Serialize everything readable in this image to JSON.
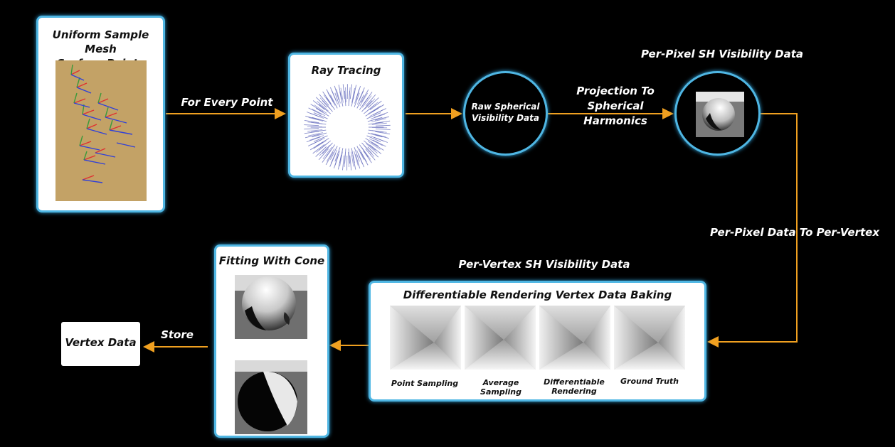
{
  "nodes": {
    "uniform_sample": {
      "title_line1": "Uniform Sample Mesh",
      "title_line2": "Surface Points"
    },
    "ray_tracing": {
      "title": "Ray Tracing"
    },
    "raw_spherical": {
      "line1": "Raw Spherical",
      "line2": "Visibility Data"
    },
    "per_pixel": {
      "title": "Per-Pixel SH Visibility Data"
    },
    "diff_rendering": {
      "title": "Differentiable Rendering Vertex Data Baking",
      "captions": [
        "Point Sampling",
        "Average Sampling",
        "Differentiable Rendering",
        "Ground Truth"
      ],
      "caption_diff_line1": "Differentiable",
      "caption_diff_line2": "Rendering"
    },
    "per_vertex_label": "Per-Vertex SH Visibility Data",
    "fitting": {
      "title": "Fitting With Cone"
    },
    "vertex_data": {
      "label": "Vertex Data"
    }
  },
  "edges": {
    "for_every_point": "For Every Point",
    "projection_line1": "Projection To",
    "projection_line2": "Spherical",
    "projection_line3": "Harmonics",
    "pixel_to_vertex": "Per-Pixel Data To Per-Vertex",
    "store": "Store"
  },
  "colors": {
    "accent_border": "#4fb6e3",
    "arrow": "#f0a020",
    "background": "#000000"
  }
}
